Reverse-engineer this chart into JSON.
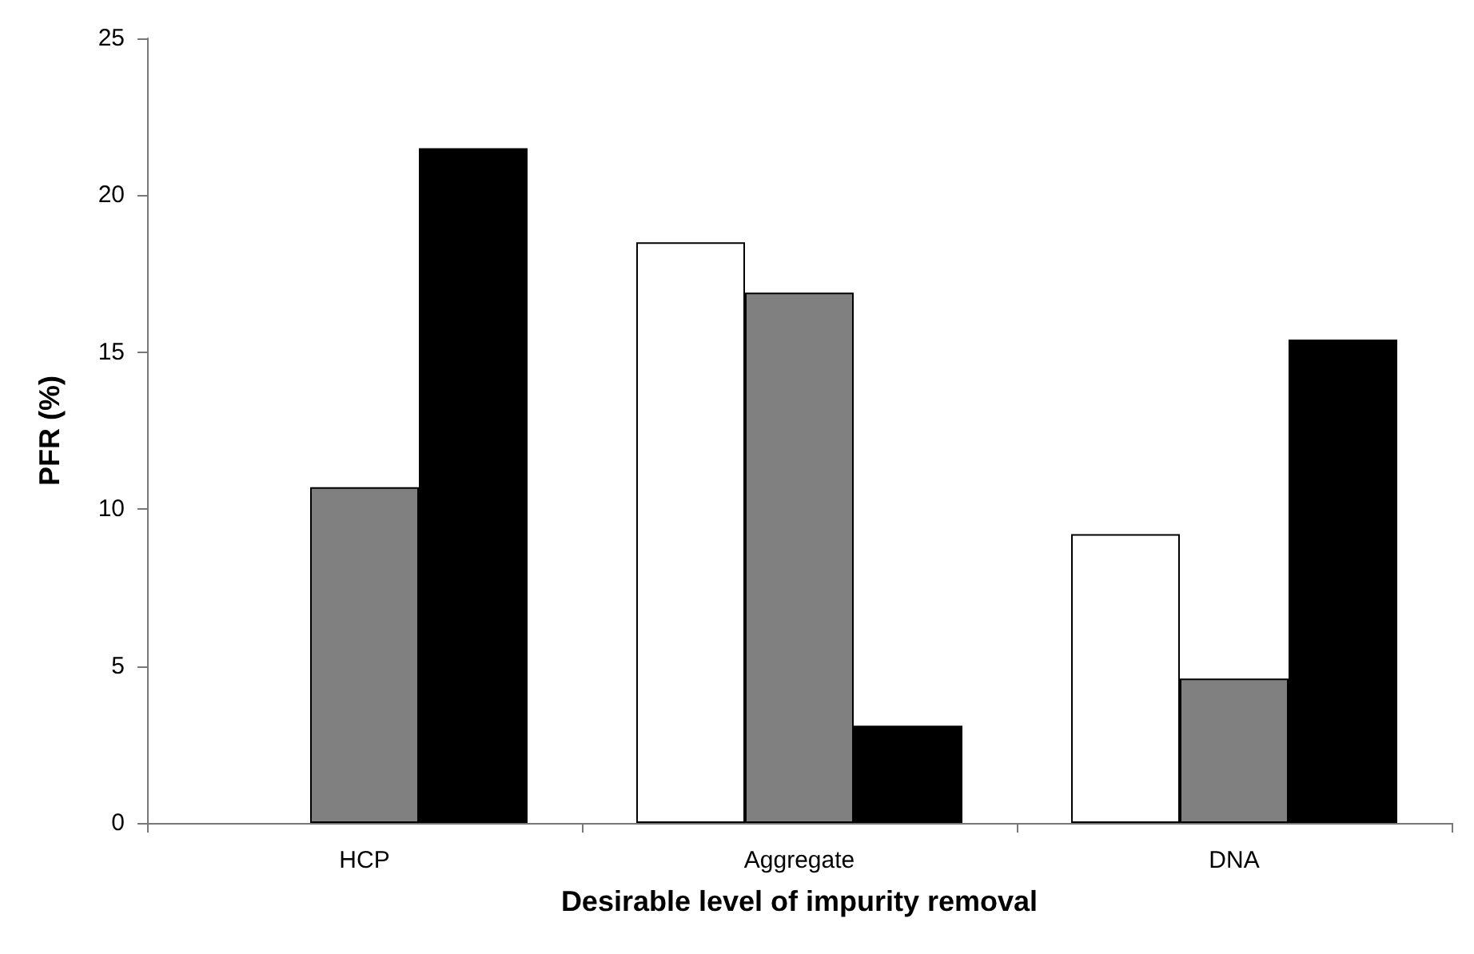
{
  "chart_data": {
    "type": "bar",
    "xlabel": "Desirable level of impurity removal",
    "ylabel": "PFR (%)",
    "categories": [
      "HCP",
      "Aggregate",
      "DNA"
    ],
    "series": [
      {
        "color": "#ffffff",
        "values": [
          null,
          18.5,
          9.2
        ]
      },
      {
        "color": "#808080",
        "values": [
          10.7,
          16.9,
          4.6
        ]
      },
      {
        "color": "#000000",
        "values": [
          21.5,
          3.1,
          15.4
        ]
      }
    ],
    "ylim": [
      0,
      25
    ],
    "yticks": [
      0,
      5,
      10,
      15,
      20,
      25
    ],
    "grid": false
  }
}
